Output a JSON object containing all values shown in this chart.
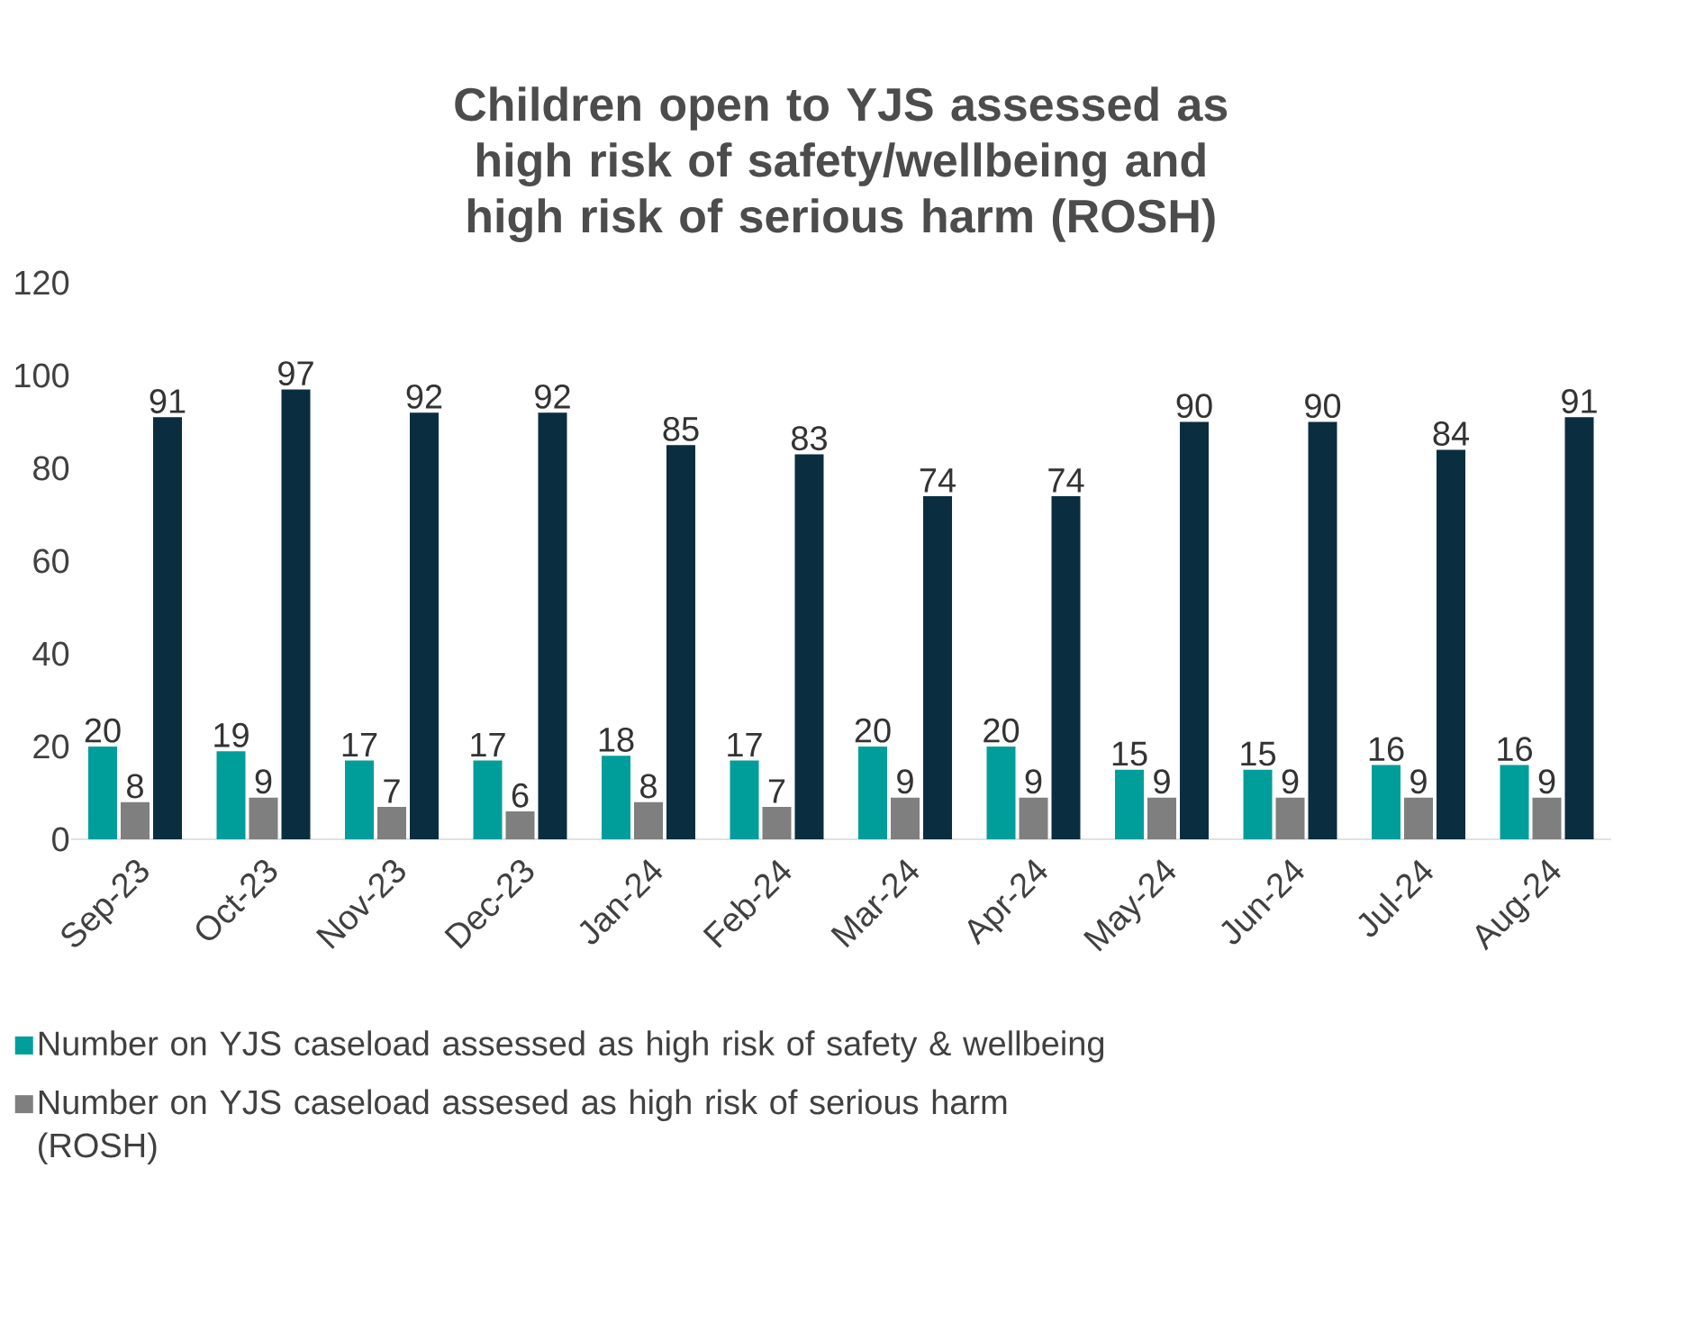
{
  "chart_data": {
    "type": "bar",
    "title": "Children open to YJS assessed as high risk of safety/wellbeing and high risk of serious harm (ROSH)",
    "categories": [
      "Sep-23",
      "Oct-23",
      "Nov-23",
      "Dec-23",
      "Jan-24",
      "Feb-24",
      "Mar-24",
      "Apr-24",
      "May-24",
      "Jun-24",
      "Jul-24",
      "Aug-24"
    ],
    "series": [
      {
        "name": "Number on YJS caseload assessed  as high risk of safety & wellbeing",
        "color": "#009e9a",
        "values": [
          20,
          19,
          17,
          17,
          18,
          17,
          20,
          20,
          15,
          15,
          16,
          16
        ]
      },
      {
        "name": "Number on YJS caseload assesed as high risk of serious harm (ROSH)",
        "color": "#7f7f7f",
        "values": [
          8,
          9,
          7,
          6,
          8,
          7,
          9,
          9,
          9,
          9,
          9,
          9
        ]
      },
      {
        "color": "#0b2d40",
        "values": [
          91,
          97,
          92,
          92,
          85,
          83,
          74,
          74,
          90,
          90,
          84,
          91
        ]
      }
    ],
    "ylim": [
      0,
      120
    ],
    "yticks": [
      0,
      20,
      40,
      60,
      80,
      100,
      120
    ],
    "data_labels": true,
    "grid": false,
    "legend": "bottom"
  }
}
